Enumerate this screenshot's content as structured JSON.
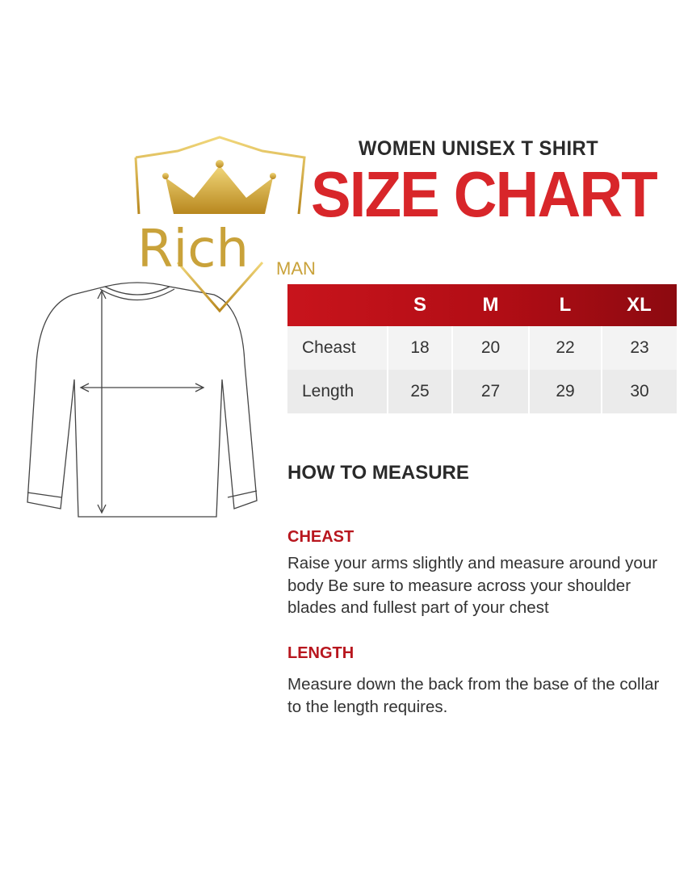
{
  "brand": {
    "name_main": "Rich",
    "name_sub": "MAN",
    "gold": "#c9a23a"
  },
  "header": {
    "subtitle": "WOMEN UNISEX T SHIRT",
    "title": "SIZE CHART",
    "accent": "#d8262a"
  },
  "size_table": {
    "columns": [
      "",
      "S",
      "M",
      "L",
      "XL"
    ],
    "rows": [
      {
        "label": "Cheast",
        "values": [
          "18",
          "20",
          "22",
          "23"
        ]
      },
      {
        "label": "Length",
        "values": [
          "25",
          "27",
          "29",
          "30"
        ]
      }
    ]
  },
  "how_to": {
    "heading": "HOW TO MEASURE",
    "sections": [
      {
        "title": "CHEAST",
        "text": "Raise your arms slightly and measure around your body Be sure to measure across your shoulder blades and fullest part of your chest"
      },
      {
        "title": "LENGTH",
        "text": "Measure down the back from the base of the collar to the length requires."
      }
    ]
  },
  "illustration": {
    "icon": "long-sleeve-shirt-icon"
  }
}
